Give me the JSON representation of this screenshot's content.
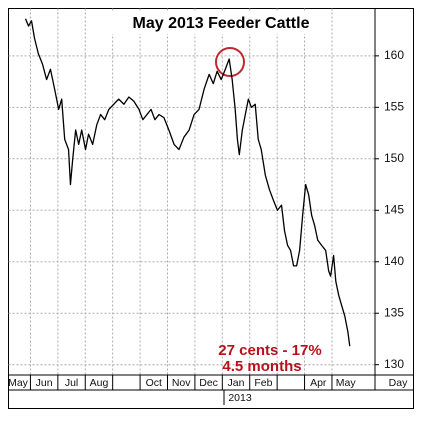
{
  "chart_data": {
    "type": "line",
    "title": "May 2013 Feeder Cattle",
    "annotations": [
      "27 cents - 17%",
      "4.5 months"
    ],
    "x_axis_label": "Day",
    "x_axis_year": "2013",
    "xlim": [
      0.2,
      13.57
    ],
    "ylim": [
      129,
      164.6
    ],
    "xticks": [
      {
        "value": 0,
        "label": "May"
      },
      {
        "value": 1,
        "label": "Jun"
      },
      {
        "value": 2,
        "label": "Jul"
      },
      {
        "value": 3,
        "label": "Aug"
      },
      {
        "value": 4,
        "label": null
      },
      {
        "value": 5,
        "label": "Oct"
      },
      {
        "value": 6,
        "label": "Nov"
      },
      {
        "value": 7,
        "label": "Dec"
      },
      {
        "value": 8,
        "label": "Jan"
      },
      {
        "value": 9,
        "label": "Feb"
      },
      {
        "value": 10,
        "label": null
      },
      {
        "value": 11,
        "label": "Apr"
      },
      {
        "value": 12,
        "label": "May"
      }
    ],
    "yticks": [
      130,
      135,
      140,
      145,
      150,
      155,
      160
    ],
    "grid": true,
    "series": [
      {
        "name": "Feeder Cattle",
        "color": "#000000",
        "x": [
          0.82,
          0.93,
          1.04,
          1.15,
          1.29,
          1.44,
          1.59,
          1.73,
          1.88,
          2.03,
          2.14,
          2.25,
          2.39,
          2.46,
          2.54,
          2.65,
          2.76,
          2.87,
          3.01,
          3.12,
          3.27,
          3.42,
          3.56,
          3.71,
          3.86,
          4.04,
          4.22,
          4.41,
          4.59,
          4.77,
          4.96,
          5.1,
          5.25,
          5.4,
          5.54,
          5.69,
          5.87,
          6.05,
          6.24,
          6.42,
          6.6,
          6.79,
          6.97,
          7.15,
          7.34,
          7.52,
          7.67,
          7.81,
          7.96,
          8.11,
          8.25,
          8.36,
          8.47,
          8.55,
          8.62,
          8.73,
          8.84,
          8.95,
          9.06,
          9.2,
          9.31,
          9.42,
          9.57,
          9.72,
          9.86,
          10.01,
          10.16,
          10.27,
          10.38,
          10.49,
          10.6,
          10.71,
          10.82,
          10.93,
          11.04,
          11.15,
          11.26,
          11.37,
          11.48,
          11.62,
          11.77,
          11.88,
          11.95,
          12.06,
          12.14,
          12.25,
          12.36,
          12.47,
          12.58,
          12.65
        ],
        "values": [
          163.6,
          162.9,
          163.4,
          161.7,
          160.2,
          159.2,
          157.7,
          158.7,
          156.8,
          154.8,
          155.8,
          151.9,
          150.9,
          147.5,
          149.9,
          152.8,
          151.4,
          152.8,
          150.9,
          152.4,
          151.4,
          153.3,
          154.3,
          153.8,
          154.8,
          155.3,
          155.8,
          155.3,
          156.0,
          155.6,
          154.8,
          153.8,
          154.3,
          154.8,
          153.8,
          154.3,
          154.0,
          152.8,
          151.4,
          150.9,
          152.1,
          152.8,
          154.3,
          154.8,
          156.8,
          158.2,
          157.3,
          158.5,
          157.7,
          158.7,
          159.7,
          157.7,
          154.8,
          151.9,
          150.4,
          152.8,
          154.3,
          155.8,
          155.0,
          155.3,
          151.9,
          150.9,
          148.4,
          147.0,
          146.0,
          145.0,
          145.5,
          143.0,
          141.6,
          141.1,
          139.6,
          139.6,
          141.1,
          144.5,
          147.5,
          146.5,
          144.5,
          143.5,
          142.1,
          141.6,
          141.1,
          139.1,
          138.6,
          140.6,
          138.1,
          136.7,
          135.7,
          134.7,
          133.2,
          131.8
        ]
      }
    ]
  }
}
